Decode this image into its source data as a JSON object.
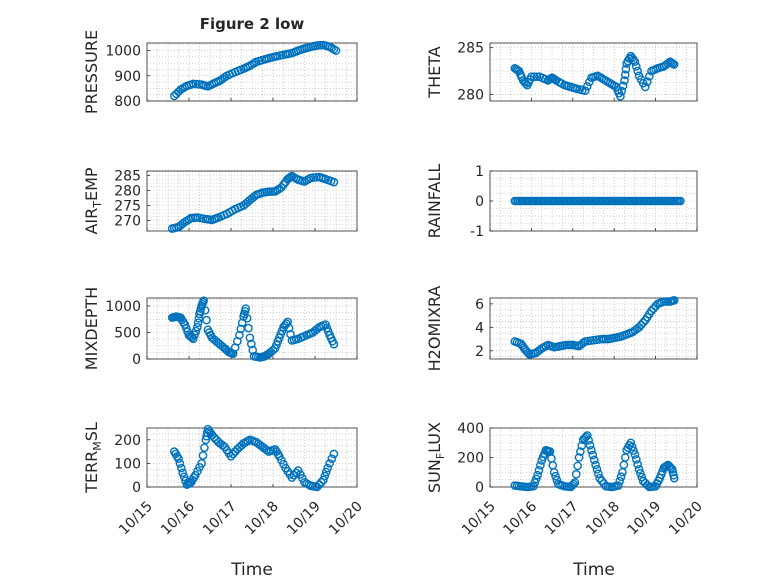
{
  "figure": {
    "title": "Figure 2 low",
    "xlabel": "Time",
    "x_ticks": [
      "10/15",
      "10/16",
      "10/17",
      "10/18",
      "10/19",
      "10/20"
    ],
    "colors": {
      "marker": "#0072BD",
      "axes": "#262626",
      "grid": "#b0b0b0"
    }
  },
  "chart_data": [
    {
      "type": "scatter",
      "name": "PRESSURE",
      "ylabel": "PRESSURE",
      "yticks": [
        "800",
        "900",
        "1000"
      ],
      "ylim": [
        800,
        1030
      ],
      "xlim_days": [
        15,
        20
      ],
      "points": [
        [
          15.65,
          820
        ],
        [
          15.8,
          845
        ],
        [
          15.95,
          860
        ],
        [
          16.1,
          868
        ],
        [
          16.3,
          865
        ],
        [
          16.45,
          858
        ],
        [
          16.6,
          870
        ],
        [
          16.75,
          882
        ],
        [
          16.9,
          900
        ],
        [
          17.1,
          915
        ],
        [
          17.3,
          928
        ],
        [
          17.45,
          940
        ],
        [
          17.6,
          955
        ],
        [
          17.8,
          965
        ],
        [
          17.95,
          972
        ],
        [
          18.1,
          978
        ],
        [
          18.3,
          985
        ],
        [
          18.45,
          990
        ],
        [
          18.6,
          1000
        ],
        [
          18.75,
          1008
        ],
        [
          18.9,
          1015
        ],
        [
          19.05,
          1020
        ],
        [
          19.2,
          1022
        ],
        [
          19.35,
          1015
        ],
        [
          19.5,
          1000
        ]
      ]
    },
    {
      "type": "scatter",
      "name": "THETA",
      "ylabel": "THETA",
      "yticks": [
        "280",
        "285"
      ],
      "ylim": [
        279.3,
        285.5
      ],
      "xlim_days": [
        15,
        20
      ],
      "points": [
        [
          15.6,
          282.8
        ],
        [
          15.7,
          282.5
        ],
        [
          15.8,
          281.5
        ],
        [
          15.9,
          281.0
        ],
        [
          16.0,
          281.9
        ],
        [
          16.2,
          281.9
        ],
        [
          16.4,
          281.5
        ],
        [
          16.5,
          281.8
        ],
        [
          16.6,
          281.5
        ],
        [
          16.8,
          281.0
        ],
        [
          16.95,
          280.8
        ],
        [
          17.1,
          280.6
        ],
        [
          17.3,
          280.4
        ],
        [
          17.45,
          281.8
        ],
        [
          17.6,
          282.0
        ],
        [
          17.75,
          281.6
        ],
        [
          17.9,
          281.2
        ],
        [
          18.05,
          280.8
        ],
        [
          18.15,
          279.8
        ],
        [
          18.25,
          281.5
        ],
        [
          18.3,
          283.3
        ],
        [
          18.4,
          284.1
        ],
        [
          18.5,
          283.5
        ],
        [
          18.6,
          282.0
        ],
        [
          18.75,
          280.8
        ],
        [
          18.9,
          282.5
        ],
        [
          19.05,
          282.8
        ],
        [
          19.2,
          283.0
        ],
        [
          19.35,
          283.5
        ],
        [
          19.45,
          283.2
        ]
      ]
    },
    {
      "type": "scatter",
      "name": "AIR_TEMP",
      "ylabel_main": "AIR",
      "ylabel_sub": "T",
      "ylabel_rest": "EMP",
      "yticks": [
        "270",
        "275",
        "280",
        "285"
      ],
      "ylim": [
        266.5,
        286.5
      ],
      "xlim_days": [
        15,
        20
      ],
      "points": [
        [
          15.6,
          267.3
        ],
        [
          15.75,
          267.8
        ],
        [
          15.9,
          269.5
        ],
        [
          16.05,
          270.8
        ],
        [
          16.2,
          271.0
        ],
        [
          16.4,
          270.5
        ],
        [
          16.55,
          270.2
        ],
        [
          16.7,
          271.0
        ],
        [
          16.9,
          272.2
        ],
        [
          17.1,
          273.8
        ],
        [
          17.3,
          275.0
        ],
        [
          17.45,
          276.8
        ],
        [
          17.6,
          278.5
        ],
        [
          17.75,
          279.3
        ],
        [
          17.9,
          279.6
        ],
        [
          18.05,
          279.7
        ],
        [
          18.2,
          281.0
        ],
        [
          18.35,
          283.8
        ],
        [
          18.45,
          284.8
        ],
        [
          18.6,
          283.6
        ],
        [
          18.75,
          283.0
        ],
        [
          18.9,
          284.2
        ],
        [
          19.1,
          284.5
        ],
        [
          19.25,
          283.8
        ],
        [
          19.45,
          282.8
        ]
      ]
    },
    {
      "type": "scatter",
      "name": "RAINFALL",
      "ylabel": "RAINFALL",
      "yticks": [
        "-1",
        "0",
        "1"
      ],
      "ylim": [
        -1,
        1
      ],
      "xlim_days": [
        15,
        20
      ],
      "x_range_days": [
        15.6,
        19.6
      ],
      "constant_value": 0
    },
    {
      "type": "scatter",
      "name": "MIXDEPTH",
      "ylabel": "MIXDEPTH",
      "yticks": [
        "0",
        "500",
        "1000"
      ],
      "ylim": [
        0,
        1150
      ],
      "xlim_days": [
        15,
        20
      ],
      "points": [
        [
          15.6,
          780
        ],
        [
          15.7,
          800
        ],
        [
          15.8,
          780
        ],
        [
          15.9,
          650
        ],
        [
          16.0,
          450
        ],
        [
          16.1,
          380
        ],
        [
          16.2,
          600
        ],
        [
          16.25,
          850
        ],
        [
          16.3,
          1000
        ],
        [
          16.35,
          1100
        ],
        [
          16.45,
          550
        ],
        [
          16.55,
          400
        ],
        [
          16.7,
          300
        ],
        [
          16.85,
          200
        ],
        [
          16.95,
          130
        ],
        [
          17.05,
          100
        ],
        [
          17.2,
          450
        ],
        [
          17.3,
          800
        ],
        [
          17.35,
          950
        ],
        [
          17.45,
          400
        ],
        [
          17.55,
          50
        ],
        [
          17.7,
          30
        ],
        [
          17.8,
          50
        ],
        [
          17.9,
          100
        ],
        [
          18.05,
          200
        ],
        [
          18.15,
          400
        ],
        [
          18.25,
          600
        ],
        [
          18.35,
          700
        ],
        [
          18.45,
          350
        ],
        [
          18.6,
          380
        ],
        [
          18.8,
          450
        ],
        [
          18.95,
          500
        ],
        [
          19.1,
          600
        ],
        [
          19.25,
          650
        ],
        [
          19.35,
          450
        ],
        [
          19.45,
          280
        ]
      ]
    },
    {
      "type": "scatter",
      "name": "H2OMIXRA",
      "ylabel": "H2OMIXRA",
      "yticks": [
        "2",
        "4",
        "6"
      ],
      "ylim": [
        1.3,
        6.5
      ],
      "xlim_days": [
        15,
        20
      ],
      "points": [
        [
          15.6,
          2.8
        ],
        [
          15.75,
          2.6
        ],
        [
          15.85,
          2.1
        ],
        [
          15.95,
          1.7
        ],
        [
          16.1,
          1.8
        ],
        [
          16.25,
          2.2
        ],
        [
          16.4,
          2.5
        ],
        [
          16.55,
          2.3
        ],
        [
          16.7,
          2.4
        ],
        [
          16.85,
          2.5
        ],
        [
          17.0,
          2.5
        ],
        [
          17.15,
          2.4
        ],
        [
          17.3,
          2.8
        ],
        [
          17.5,
          2.9
        ],
        [
          17.7,
          3.0
        ],
        [
          17.85,
          3.0
        ],
        [
          18.0,
          3.1
        ],
        [
          18.15,
          3.2
        ],
        [
          18.3,
          3.4
        ],
        [
          18.45,
          3.6
        ],
        [
          18.6,
          4.0
        ],
        [
          18.75,
          4.6
        ],
        [
          18.9,
          5.4
        ],
        [
          19.05,
          6.0
        ],
        [
          19.2,
          6.2
        ],
        [
          19.35,
          6.2
        ],
        [
          19.45,
          6.3
        ]
      ]
    },
    {
      "type": "scatter",
      "name": "TERR_MSL",
      "ylabel_main": "TERR",
      "ylabel_sub": "M",
      "ylabel_rest": "SL",
      "yticks": [
        "0",
        "100",
        "200"
      ],
      "ylim": [
        0,
        250
      ],
      "xlim_days": [
        15,
        20
      ],
      "points": [
        [
          15.65,
          150
        ],
        [
          15.75,
          120
        ],
        [
          15.85,
          60
        ],
        [
          15.95,
          10
        ],
        [
          16.05,
          20
        ],
        [
          16.15,
          50
        ],
        [
          16.3,
          100
        ],
        [
          16.4,
          200
        ],
        [
          16.45,
          245
        ],
        [
          16.55,
          220
        ],
        [
          16.7,
          190
        ],
        [
          16.85,
          170
        ],
        [
          17.0,
          130
        ],
        [
          17.15,
          160
        ],
        [
          17.3,
          185
        ],
        [
          17.45,
          200
        ],
        [
          17.6,
          190
        ],
        [
          17.75,
          170
        ],
        [
          17.9,
          150
        ],
        [
          18.05,
          160
        ],
        [
          18.15,
          130
        ],
        [
          18.3,
          80
        ],
        [
          18.45,
          40
        ],
        [
          18.6,
          70
        ],
        [
          18.75,
          20
        ],
        [
          18.9,
          5
        ],
        [
          19.05,
          0
        ],
        [
          19.2,
          30
        ],
        [
          19.3,
          80
        ],
        [
          19.45,
          140
        ]
      ]
    },
    {
      "type": "scatter",
      "name": "SUN_FLUX",
      "ylabel_main": "SUN",
      "ylabel_sub": "F",
      "ylabel_rest": "LUX",
      "yticks": [
        "0",
        "200",
        "400"
      ],
      "ylim": [
        0,
        400
      ],
      "xlim_days": [
        15,
        20
      ],
      "points": [
        [
          15.6,
          10
        ],
        [
          15.75,
          5
        ],
        [
          15.9,
          0
        ],
        [
          16.05,
          5
        ],
        [
          16.15,
          80
        ],
        [
          16.25,
          180
        ],
        [
          16.35,
          250
        ],
        [
          16.45,
          240
        ],
        [
          16.55,
          100
        ],
        [
          16.65,
          20
        ],
        [
          16.8,
          5
        ],
        [
          16.95,
          0
        ],
        [
          17.05,
          30
        ],
        [
          17.15,
          200
        ],
        [
          17.25,
          320
        ],
        [
          17.35,
          350
        ],
        [
          17.45,
          250
        ],
        [
          17.55,
          150
        ],
        [
          17.65,
          60
        ],
        [
          17.8,
          5
        ],
        [
          17.95,
          0
        ],
        [
          18.1,
          10
        ],
        [
          18.2,
          100
        ],
        [
          18.3,
          250
        ],
        [
          18.4,
          300
        ],
        [
          18.5,
          220
        ],
        [
          18.6,
          120
        ],
        [
          18.7,
          40
        ],
        [
          18.85,
          0
        ],
        [
          19.0,
          5
        ],
        [
          19.1,
          60
        ],
        [
          19.2,
          130
        ],
        [
          19.3,
          150
        ],
        [
          19.4,
          120
        ],
        [
          19.45,
          60
        ]
      ]
    }
  ]
}
